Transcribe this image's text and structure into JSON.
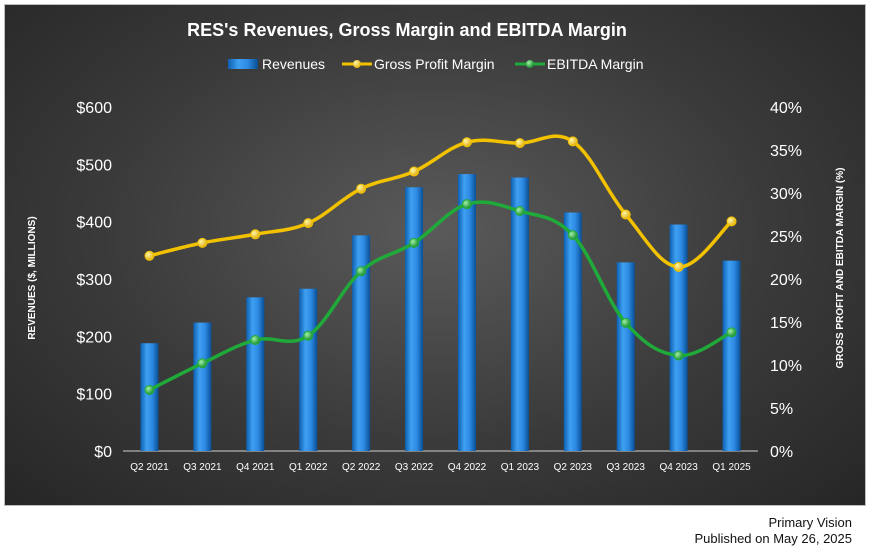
{
  "chart_data": {
    "type": "bar",
    "title": "RES's Revenues, Gross Margin and EBITDA Margin",
    "categories": [
      "Q2 2021",
      "Q3 2021",
      "Q4 2021",
      "Q1 2022",
      "Q2 2022",
      "Q3 2022",
      "Q4 2022",
      "Q1 2023",
      "Q2 2023",
      "Q3 2023",
      "Q4 2023",
      "Q1 2025"
    ],
    "ylabel": "REVENUES ($, MILLIONS)",
    "y2label": "GROSS PROFIT AND EBITDA MARGIN (%)",
    "ylim": [
      0,
      600
    ],
    "y2lim": [
      0,
      40
    ],
    "yticks": [
      "$0",
      "$100",
      "$200",
      "$300",
      "$400",
      "$500",
      "$600"
    ],
    "y2ticks": [
      "0%",
      "5%",
      "10%",
      "15%",
      "20%",
      "25%",
      "30%",
      "35%",
      "40%"
    ],
    "legend_position": "top",
    "grid": false,
    "series": [
      {
        "name": "Revenues",
        "type": "bar",
        "axis": "left",
        "color": "#1f7fd6",
        "values": [
          188,
          224,
          268,
          283,
          376,
          460,
          483,
          477,
          416,
          329,
          395,
          332
        ]
      },
      {
        "name": "Gross Profit Margin",
        "type": "line",
        "axis": "right",
        "color": "#f2c200",
        "values": [
          22.7,
          24.2,
          25.2,
          26.5,
          30.5,
          32.5,
          35.9,
          35.8,
          36.0,
          27.5,
          21.4,
          26.7
        ]
      },
      {
        "name": "EBITDA Margin",
        "type": "line",
        "axis": "right",
        "color": "#1faa3a",
        "values": [
          7.1,
          10.2,
          12.9,
          13.4,
          20.9,
          24.2,
          28.7,
          27.9,
          25.1,
          14.9,
          11.1,
          13.8
        ]
      }
    ]
  },
  "credit": {
    "line1": "Primary Vision",
    "line2": "Published on May 26, 2025"
  }
}
